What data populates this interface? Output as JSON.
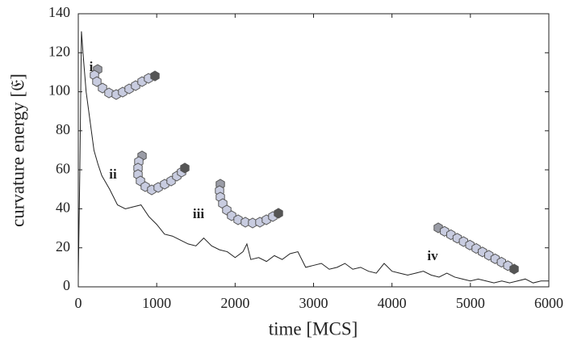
{
  "chart_data": {
    "type": "line",
    "xlabel": "time [MCS]",
    "ylabel": "curvature energy [𝔈]",
    "x": [
      0,
      20,
      40,
      60,
      80,
      100,
      150,
      200,
      250,
      300,
      400,
      500,
      600,
      700,
      800,
      900,
      1000,
      1100,
      1200,
      1300,
      1400,
      1500,
      1600,
      1700,
      1800,
      1900,
      2000,
      2100,
      2150,
      2200,
      2300,
      2400,
      2500,
      2600,
      2700,
      2800,
      2900,
      3000,
      3100,
      3200,
      3300,
      3400,
      3500,
      3600,
      3700,
      3800,
      3900,
      4000,
      4100,
      4200,
      4300,
      4400,
      4500,
      4600,
      4700,
      4800,
      4900,
      5000,
      5100,
      5200,
      5300,
      5400,
      5500,
      5600,
      5700,
      5800,
      5900,
      6000
    ],
    "series": [
      {
        "color": "#222222",
        "values": [
          5,
          60,
          131,
          120,
          110,
          100,
          85,
          70,
          63,
          57,
          50,
          42,
          40,
          41,
          42,
          36,
          32,
          27,
          26,
          24,
          22,
          21,
          25,
          21,
          19,
          18,
          15,
          18,
          22,
          14,
          15,
          13,
          16,
          14,
          17,
          18,
          10,
          11,
          12,
          9,
          10,
          12,
          9,
          10,
          8,
          7,
          12,
          8,
          7,
          6,
          7,
          8,
          6,
          5,
          7,
          5,
          4,
          3,
          4,
          3,
          2,
          3,
          2,
          3,
          4,
          2,
          3,
          3
        ]
      }
    ],
    "xlim": [
      0,
      6000
    ],
    "xticks": [
      0,
      1000,
      2000,
      3000,
      4000,
      5000,
      6000
    ],
    "ylim": [
      0,
      140
    ],
    "yticks": [
      0,
      20,
      40,
      60,
      80,
      100,
      120,
      140
    ],
    "annotations": [
      "i",
      "ii",
      "iii",
      "iv"
    ]
  }
}
